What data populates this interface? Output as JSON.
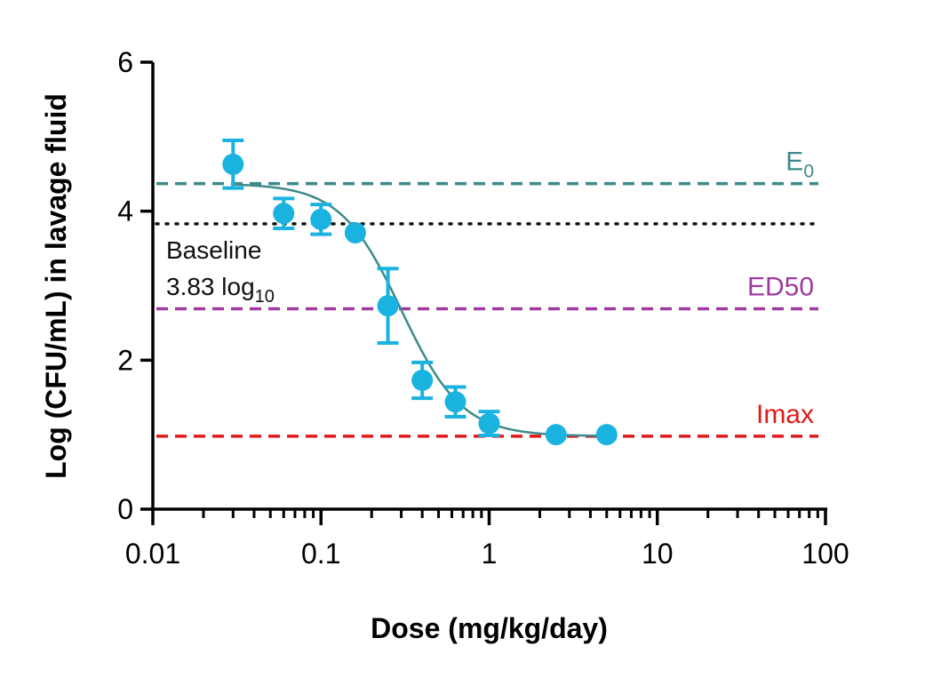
{
  "chart_data": {
    "type": "scatter",
    "xlabel": "Dose (mg/kg/day)",
    "ylabel": "Log (CFU/mL) in lavage fluid",
    "x_scale": "log",
    "xlim": [
      0.01,
      100
    ],
    "ylim": [
      0,
      6
    ],
    "x_ticks": [
      0.01,
      0.1,
      1,
      10,
      100
    ],
    "x_tick_labels": [
      "0.01",
      "0.1",
      "1",
      "10",
      "100"
    ],
    "y_ticks": [
      0,
      2,
      4,
      6
    ],
    "y_tick_labels": [
      "0",
      "2",
      "4",
      "6"
    ],
    "grid": false,
    "series": [
      {
        "kind": "points_with_error",
        "color": "#1ab3e0",
        "x": [
          0.03,
          0.06,
          0.1,
          0.16,
          0.25,
          0.4,
          0.63,
          1.0,
          2.5,
          5.0
        ],
        "y": [
          4.63,
          3.97,
          3.89,
          3.71,
          2.73,
          1.73,
          1.44,
          1.15,
          1.0,
          1.0
        ],
        "err": [
          0.32,
          0.2,
          0.2,
          0.0,
          0.5,
          0.24,
          0.2,
          0.16,
          0.0,
          0.0
        ]
      },
      {
        "kind": "fit_curve",
        "color": "#3e8a8a",
        "e0": 4.37,
        "bottom": 0.98,
        "ed50": 0.3,
        "hill": 2.4,
        "x_range": [
          0.03,
          5.0
        ]
      }
    ],
    "reference_lines": [
      {
        "y": 4.37,
        "label_main": "E",
        "label_sub": "0",
        "color": "#3e8a8a",
        "style": "dashed"
      },
      {
        "y": 3.83,
        "label_main": "",
        "label_sub": "",
        "color": "#111111",
        "style": "dotted"
      },
      {
        "y": 2.69,
        "label_main": "ED50",
        "label_sub": "",
        "color": "#a03aa0",
        "style": "dashed"
      },
      {
        "y": 0.98,
        "label_main": "Imax",
        "label_sub": "",
        "color": "#e01a1a",
        "style": "dashed"
      }
    ],
    "annotations": {
      "baseline_line1": "Baseline",
      "baseline_line2_main": "3.83 log",
      "baseline_line2_sub": "10"
    }
  }
}
